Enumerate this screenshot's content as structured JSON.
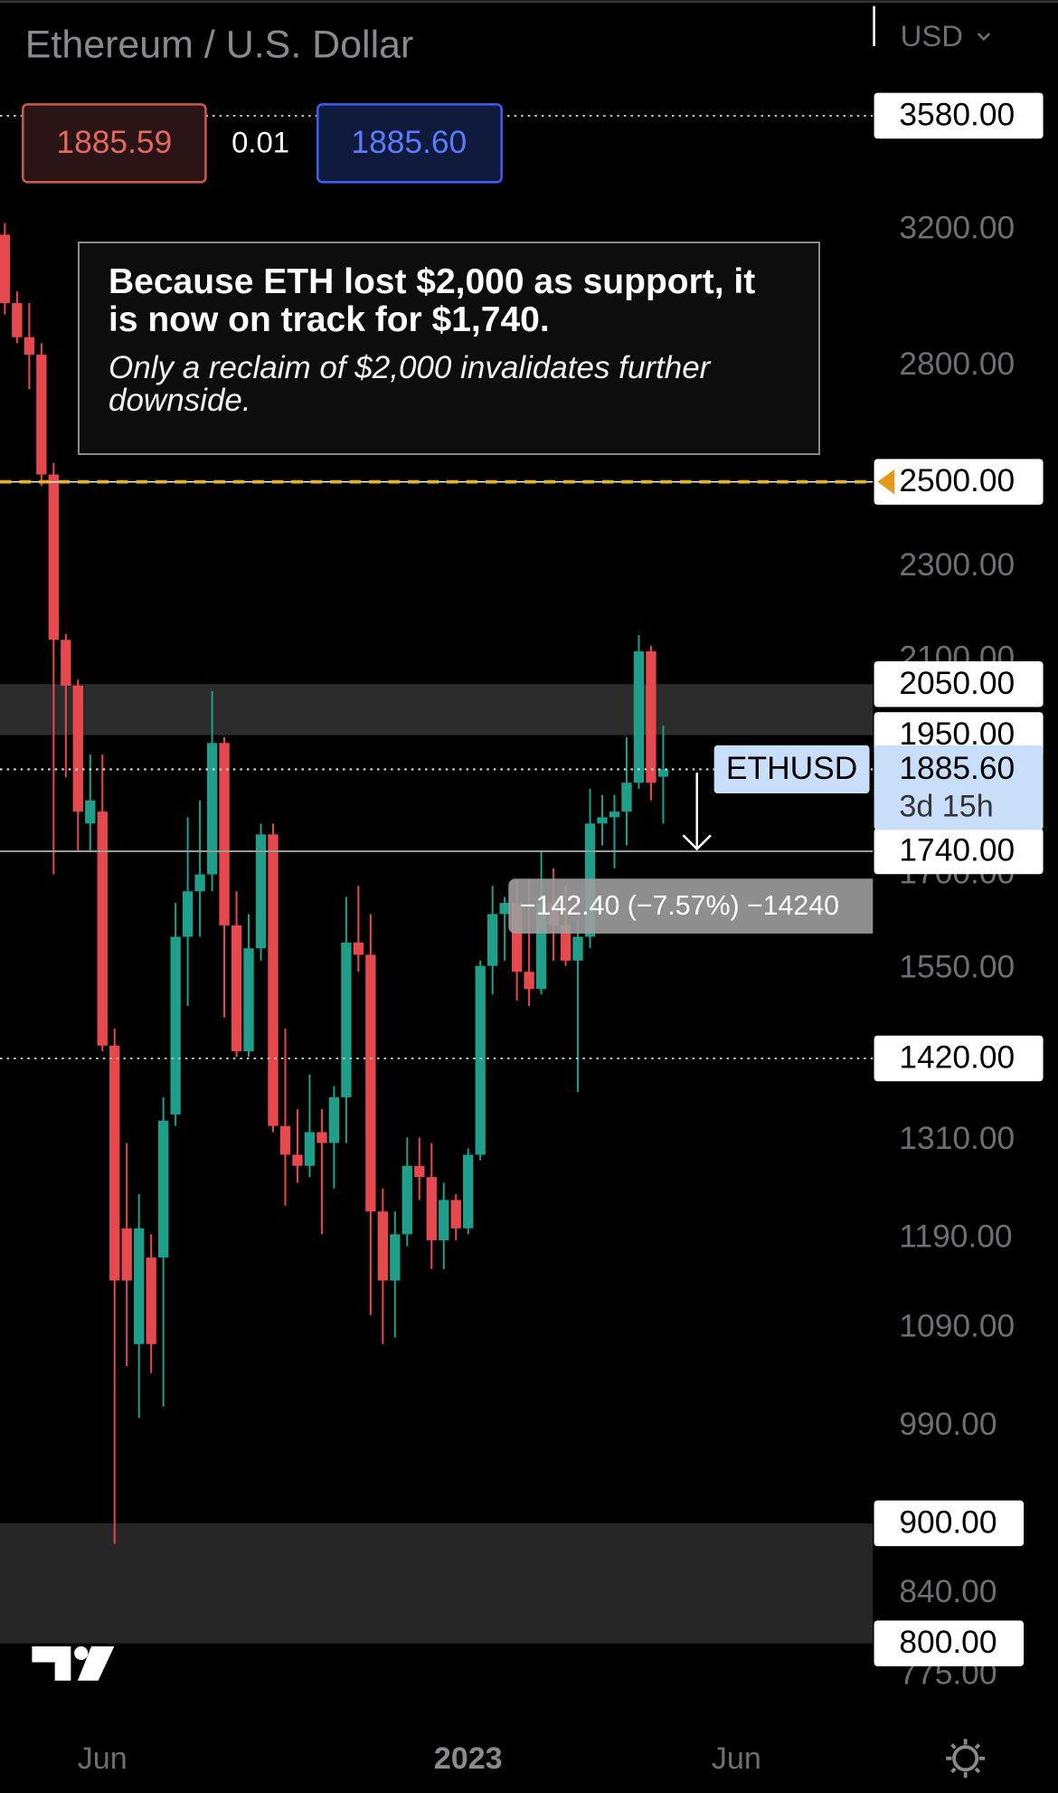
{
  "chart_data": {
    "type": "candlestick",
    "title": "Ethereum / U.S. Dollar",
    "currency": "USD",
    "log_scale": true,
    "ylim": [
      4000,
      750
    ],
    "yticks": [
      {
        "value": 3200,
        "label": "3200.00"
      },
      {
        "value": 2800,
        "label": "2800.00"
      },
      {
        "value": 2300,
        "label": "2300.00"
      },
      {
        "value": 2100,
        "label": "2100.00"
      },
      {
        "value": 1700,
        "label": "1700.00"
      },
      {
        "value": 1550,
        "label": "1550.00"
      },
      {
        "value": 1310,
        "label": "1310.00"
      },
      {
        "value": 1190,
        "label": "1190.00"
      },
      {
        "value": 1090,
        "label": "1090.00"
      },
      {
        "value": 990,
        "label": "990.00"
      },
      {
        "value": 840,
        "label": "840.00"
      },
      {
        "value": 775,
        "label": "775.00"
      }
    ],
    "xlim": [
      -0.4,
      71.2
    ],
    "xticks": [
      {
        "value": 8,
        "label": "Jun"
      },
      {
        "value": 38,
        "label": "2023"
      },
      {
        "value": 60,
        "label": "Jun"
      }
    ],
    "up_color": "#1f9e89",
    "down_color": "#e5484d",
    "candles": {
      "open": [
        3186,
        2979,
        2881,
        2832,
        2518,
        2141,
        2047,
        1788,
        1809,
        1438,
        1202,
        1073,
        1168,
        1168,
        1344,
        1600,
        1673,
        1701,
        1935,
        1618,
        1430,
        1582,
        1769,
        1329,
        1292,
        1278,
        1321,
        1307,
        1367,
        1591,
        1572,
        1222,
        1142,
        1195,
        1278,
        1264,
        1188,
        1236,
        1202,
        1292,
        1555,
        1636,
        1654,
        1546,
        1520,
        1654,
        1618,
        1563,
        1600,
        1788,
        1799,
        1809,
        1861,
        2117,
        1872
      ],
      "high": [
        3222,
        3013,
        2979,
        2864,
        2547,
        2153,
        2059,
        1913,
        1913,
        1462,
        1307,
        1243,
        1195,
        1367,
        1654,
        1799,
        1829,
        2036,
        1946,
        1673,
        1636,
        1788,
        1788,
        1462,
        1351,
        1398,
        1351,
        1382,
        1664,
        1682,
        1636,
        1250,
        1222,
        1314,
        1314,
        1307,
        1257,
        1243,
        1300,
        1563,
        1682,
        1664,
        1692,
        1692,
        1740,
        1711,
        1682,
        1627,
        1850,
        1839,
        1839,
        1946,
        2151,
        2129,
        1968
      ],
      "low": [
        2946,
        2864,
        2738,
        2490,
        1701,
        1871,
        1740,
        1740,
        1430,
        882,
        1050,
        998,
        1043,
        1009,
        1329,
        1495,
        1600,
        1673,
        1478,
        1422,
        1422,
        1563,
        1321,
        1229,
        1257,
        1264,
        1195,
        1250,
        1307,
        1546,
        1104,
        1073,
        1080,
        1181,
        1236,
        1155,
        1155,
        1188,
        1195,
        1285,
        1512,
        1563,
        1503,
        1495,
        1512,
        1563,
        1555,
        1374,
        1582,
        1750,
        1711,
        1750,
        1850,
        1829,
        1788
      ],
      "close": [
        2979,
        2881,
        2832,
        2518,
        2141,
        2047,
        1809,
        1829,
        1438,
        1142,
        1142,
        1202,
        1073,
        1336,
        1600,
        1673,
        1701,
        1935,
        1618,
        1430,
        1582,
        1769,
        1329,
        1292,
        1278,
        1321,
        1307,
        1367,
        1591,
        1572,
        1222,
        1142,
        1195,
        1278,
        1264,
        1188,
        1236,
        1202,
        1292,
        1555,
        1636,
        1654,
        1546,
        1520,
        1654,
        1618,
        1563,
        1600,
        1788,
        1799,
        1809,
        1861,
        2117,
        1861,
        1885.6
      ]
    },
    "price_lines": [
      {
        "value": 3580,
        "label": "3580.00",
        "style": "dotted",
        "color": "#bdbdbd"
      },
      {
        "value": 2500,
        "label": "2500.00",
        "style": "dashed",
        "color": "#e6b422",
        "marker": true
      },
      {
        "value": 1740,
        "label": "1740.00",
        "style": "solid",
        "color": "#9a9a9a"
      },
      {
        "value": 1420,
        "label": "1420.00",
        "style": "dotted",
        "color": "#bdbdbd"
      }
    ],
    "zones": [
      {
        "top": {
          "value": 2050,
          "label": "2050.00"
        },
        "bottom": {
          "value": 1950,
          "label": "1950.00"
        },
        "color": "#2b2b2b"
      },
      {
        "top": {
          "value": 900,
          "label": "900.00"
        },
        "bottom": {
          "value": 800,
          "label": "800.00"
        },
        "color": "#262626"
      }
    ],
    "last_price": {
      "value": 1885.6,
      "label": "1885.60",
      "symbol": "ETHUSD",
      "countdown": "3d 15h"
    },
    "bid": "1885.59",
    "spread": "0.01",
    "ask": "1885.60",
    "measure_label": "−142.40 (−7.57%) −14240",
    "annotation": {
      "headline": "Because ETH lost $2,000 as support, it is now on track for $1,740.",
      "body": "Only a reclaim of $2,000 invalidates further downside."
    }
  }
}
